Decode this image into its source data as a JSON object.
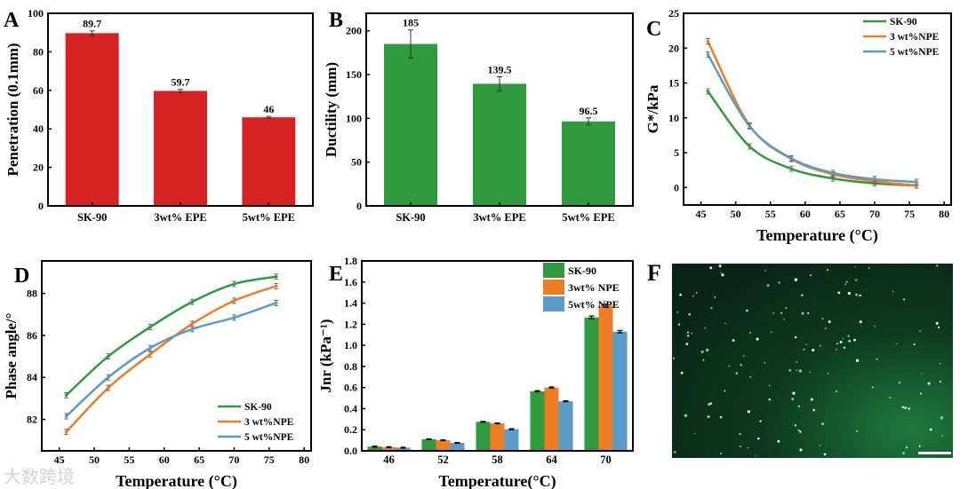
{
  "watermark": "大数跨境",
  "colors": {
    "red": "#d62222",
    "green": "#2f9a3e",
    "orange": "#ef7d22",
    "blue": "#5b9bc8"
  },
  "chart_data": [
    {
      "panel": "A",
      "type": "bar",
      "categories": [
        "SK-90",
        "3wt% EPE",
        "5wt% EPE"
      ],
      "values": [
        89.7,
        59.7,
        46
      ],
      "data_labels": [
        "89.7",
        "59.7",
        "46"
      ],
      "errors": [
        1.2,
        0.8,
        0.5
      ],
      "xlabel": "",
      "ylabel": "Penetration (0.1mm)",
      "ylim": [
        0,
        100
      ],
      "yticks": [
        0,
        20,
        40,
        60,
        80,
        100
      ],
      "color": "#d62222"
    },
    {
      "panel": "B",
      "type": "bar",
      "categories": [
        "SK-90",
        "3wt% EPE",
        "5wt% EPE"
      ],
      "values": [
        185,
        139.5,
        96.5
      ],
      "data_labels": [
        "185",
        "139.5",
        "96.5"
      ],
      "errors": [
        16,
        8,
        4
      ],
      "xlabel": "",
      "ylabel": "Ductility (mm)",
      "ylim": [
        0,
        220
      ],
      "yticks": [
        0,
        50,
        100,
        150,
        200
      ],
      "color": "#2f9a3e"
    },
    {
      "panel": "C",
      "type": "line",
      "x": [
        46,
        52,
        58,
        64,
        70,
        76
      ],
      "series": [
        {
          "name": "SK-90",
          "values": [
            13.8,
            5.9,
            2.7,
            1.3,
            0.6,
            0.3
          ],
          "color": "#2f9a3e"
        },
        {
          "name": "3 wt%NPE",
          "values": [
            21.0,
            8.9,
            4.1,
            1.9,
            0.9,
            0.3
          ],
          "color": "#ef7d22"
        },
        {
          "name": "5 wt%NPE",
          "values": [
            19.1,
            8.8,
            4.2,
            2.1,
            1.2,
            0.8
          ],
          "color": "#5b9bc8"
        }
      ],
      "xlabel": "Temperature (°C)",
      "ylabel": "G*/kPa",
      "xlim": [
        42.5,
        81
      ],
      "ylim": [
        -2.5,
        25
      ],
      "xticks": [
        45,
        50,
        55,
        60,
        65,
        70,
        75,
        80
      ],
      "yticks": [
        0,
        5,
        10,
        15,
        20,
        25
      ],
      "legend": "top-right"
    },
    {
      "panel": "D",
      "type": "line",
      "x": [
        46,
        52,
        58,
        64,
        70,
        76
      ],
      "series": [
        {
          "name": "SK-90",
          "values": [
            83.15,
            85.0,
            86.4,
            87.6,
            88.45,
            88.8
          ],
          "color": "#2f9a3e"
        },
        {
          "name": "3 wt%NPE",
          "values": [
            81.4,
            83.5,
            85.1,
            86.55,
            87.65,
            88.35
          ],
          "color": "#ef7d22"
        },
        {
          "name": "5 wt%NPE",
          "values": [
            82.15,
            84.0,
            85.4,
            86.3,
            86.85,
            87.55
          ],
          "color": "#5b9bc8"
        }
      ],
      "xlabel": "Temperature (°C)",
      "ylabel": "Phase angle/°",
      "xlim": [
        42.5,
        81
      ],
      "ylim": [
        80.5,
        89.55
      ],
      "xticks": [
        45,
        50,
        55,
        60,
        65,
        70,
        75,
        80
      ],
      "yticks": [
        82,
        84,
        86,
        88
      ],
      "legend": "bottom-right"
    },
    {
      "panel": "E",
      "type": "bar",
      "categories": [
        "46",
        "52",
        "58",
        "64",
        "70"
      ],
      "series": [
        {
          "name": "SK-90",
          "values": [
            0.04,
            0.11,
            0.275,
            0.565,
            1.265
          ],
          "color": "#2f9a3e"
        },
        {
          "name": "3wt% NPE",
          "values": [
            0.035,
            0.1,
            0.26,
            0.6,
            1.375
          ],
          "color": "#ef7d22"
        },
        {
          "name": "5wt% NPE",
          "values": [
            0.03,
            0.075,
            0.205,
            0.47,
            1.13
          ],
          "color": "#5b9bc8"
        }
      ],
      "xlabel": "Temperature(°C)",
      "ylabel": "Jnr (kPa⁻¹)",
      "ylim": [
        0,
        1.8
      ],
      "yticks": [
        0.0,
        0.2,
        0.4,
        0.6,
        0.8,
        1.0,
        1.2,
        1.4,
        1.6,
        1.8
      ],
      "legend": "top-right"
    }
  ],
  "panel_f": {
    "label": "F",
    "description_visible": false
  }
}
